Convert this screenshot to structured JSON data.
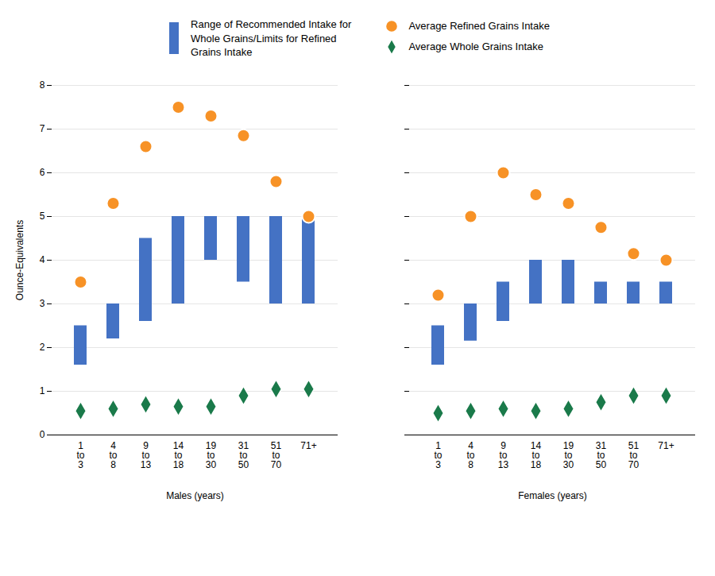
{
  "chart_data": [
    {
      "type": "bar",
      "xlabel": "Males (years)",
      "ylabel": "Ounce-Equivalents",
      "categories": [
        "1\nto\n3",
        "4\nto\n8",
        "9\nto\n13",
        "14\nto\n18",
        "19\nto\n30",
        "31\nto\n50",
        "51\nto\n70",
        "71+"
      ],
      "series": [
        {
          "name": "Range of Recommended Intake for\nWhole Grains/Limits for Refined\nGrains Intake",
          "type": "bar",
          "color": "#4472C4",
          "low": [
            1.6,
            2.2,
            2.6,
            3.0,
            4.0,
            3.5,
            3.0,
            3.0
          ],
          "high": [
            2.5,
            3.0,
            4.5,
            5.0,
            5.0,
            5.0,
            5.0,
            5.0
          ]
        },
        {
          "name": "Average Refined Grains Intake",
          "type": "scatter",
          "marker": "circle",
          "color": "#F79226",
          "values": [
            3.5,
            5.3,
            6.6,
            7.5,
            7.3,
            6.85,
            5.8,
            5.0
          ]
        },
        {
          "name": "Average Whole Grains Intake",
          "type": "scatter",
          "marker": "diamond",
          "color": "#1A7A4A",
          "values": [
            0.55,
            0.6,
            0.7,
            0.65,
            0.65,
            0.9,
            1.05,
            1.05
          ]
        }
      ],
      "ylim": [
        0,
        8
      ],
      "yticks": [
        0,
        1,
        2,
        3,
        4,
        5,
        6,
        7,
        8
      ],
      "grid": true,
      "legend": "top"
    },
    {
      "type": "bar",
      "xlabel": "Females (years)",
      "categories": [
        "1\nto\n3",
        "4\nto\n8",
        "9\nto\n13",
        "14\nto\n18",
        "19\nto\n30",
        "31\nto\n50",
        "51\nto\n70",
        "71+"
      ],
      "series": [
        {
          "name": "Range of Recommended Intake for\nWhole Grains/Limits for Refined\nGrains Intake",
          "type": "bar",
          "color": "#4472C4",
          "low": [
            1.6,
            2.15,
            2.6,
            3.0,
            3.0,
            3.0,
            3.0,
            3.0
          ],
          "high": [
            2.5,
            3.0,
            3.5,
            4.0,
            4.0,
            3.5,
            3.5,
            3.5
          ]
        },
        {
          "name": "Average Refined Grains Intake",
          "type": "scatter",
          "marker": "circle",
          "color": "#F79226",
          "values": [
            3.2,
            5.0,
            6.0,
            5.5,
            5.3,
            4.75,
            4.15,
            4.0
          ]
        },
        {
          "name": "Average Whole Grains Intake",
          "type": "scatter",
          "marker": "diamond",
          "color": "#1A7A4A",
          "values": [
            0.5,
            0.55,
            0.6,
            0.55,
            0.6,
            0.75,
            0.9,
            0.9
          ]
        }
      ],
      "ylim": [
        0,
        8
      ],
      "yticks": [
        0,
        1,
        2,
        3,
        4,
        5,
        6,
        7,
        8
      ],
      "grid": true,
      "legend": "top",
      "tick_labels": "x"
    }
  ]
}
